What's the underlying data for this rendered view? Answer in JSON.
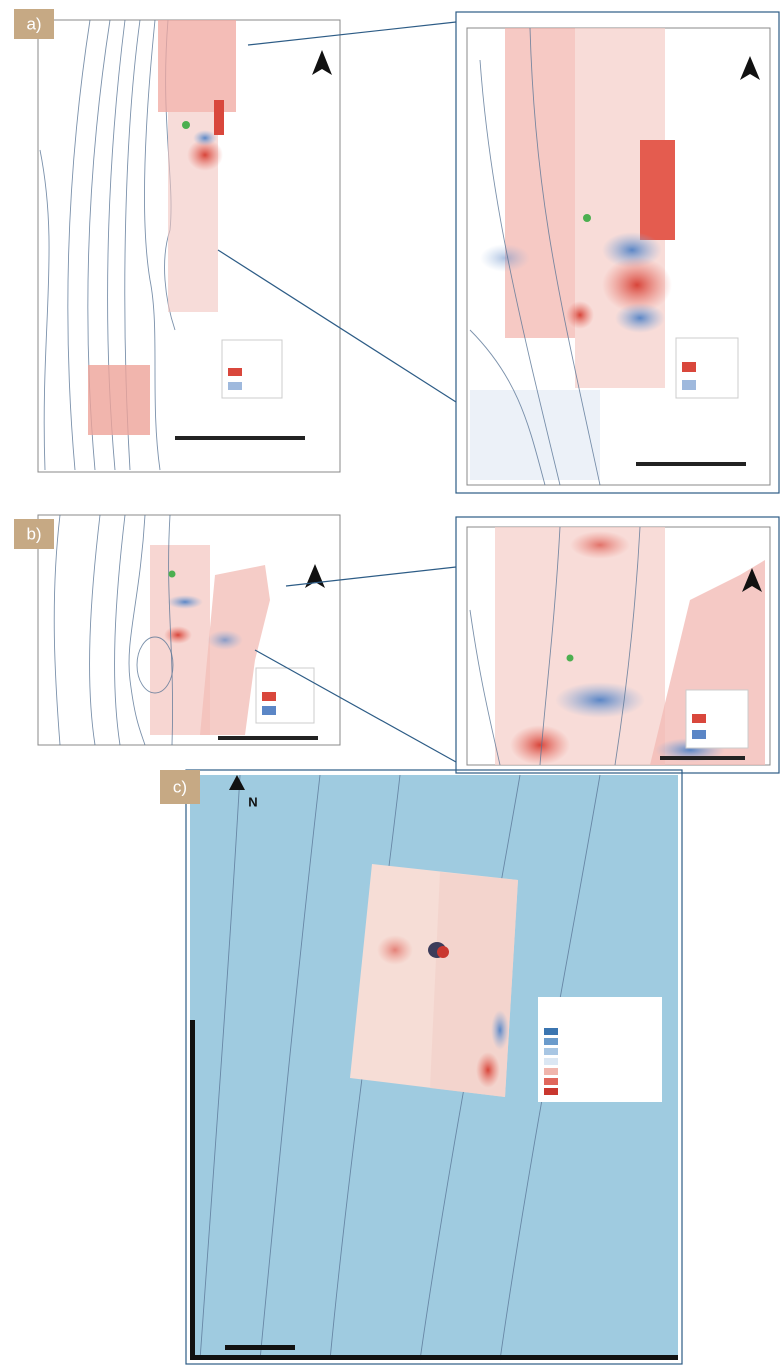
{
  "panels": [
    {
      "label": "a)"
    },
    {
      "label": "b)"
    },
    {
      "label": "c)"
    }
  ],
  "north_label": "N"
}
